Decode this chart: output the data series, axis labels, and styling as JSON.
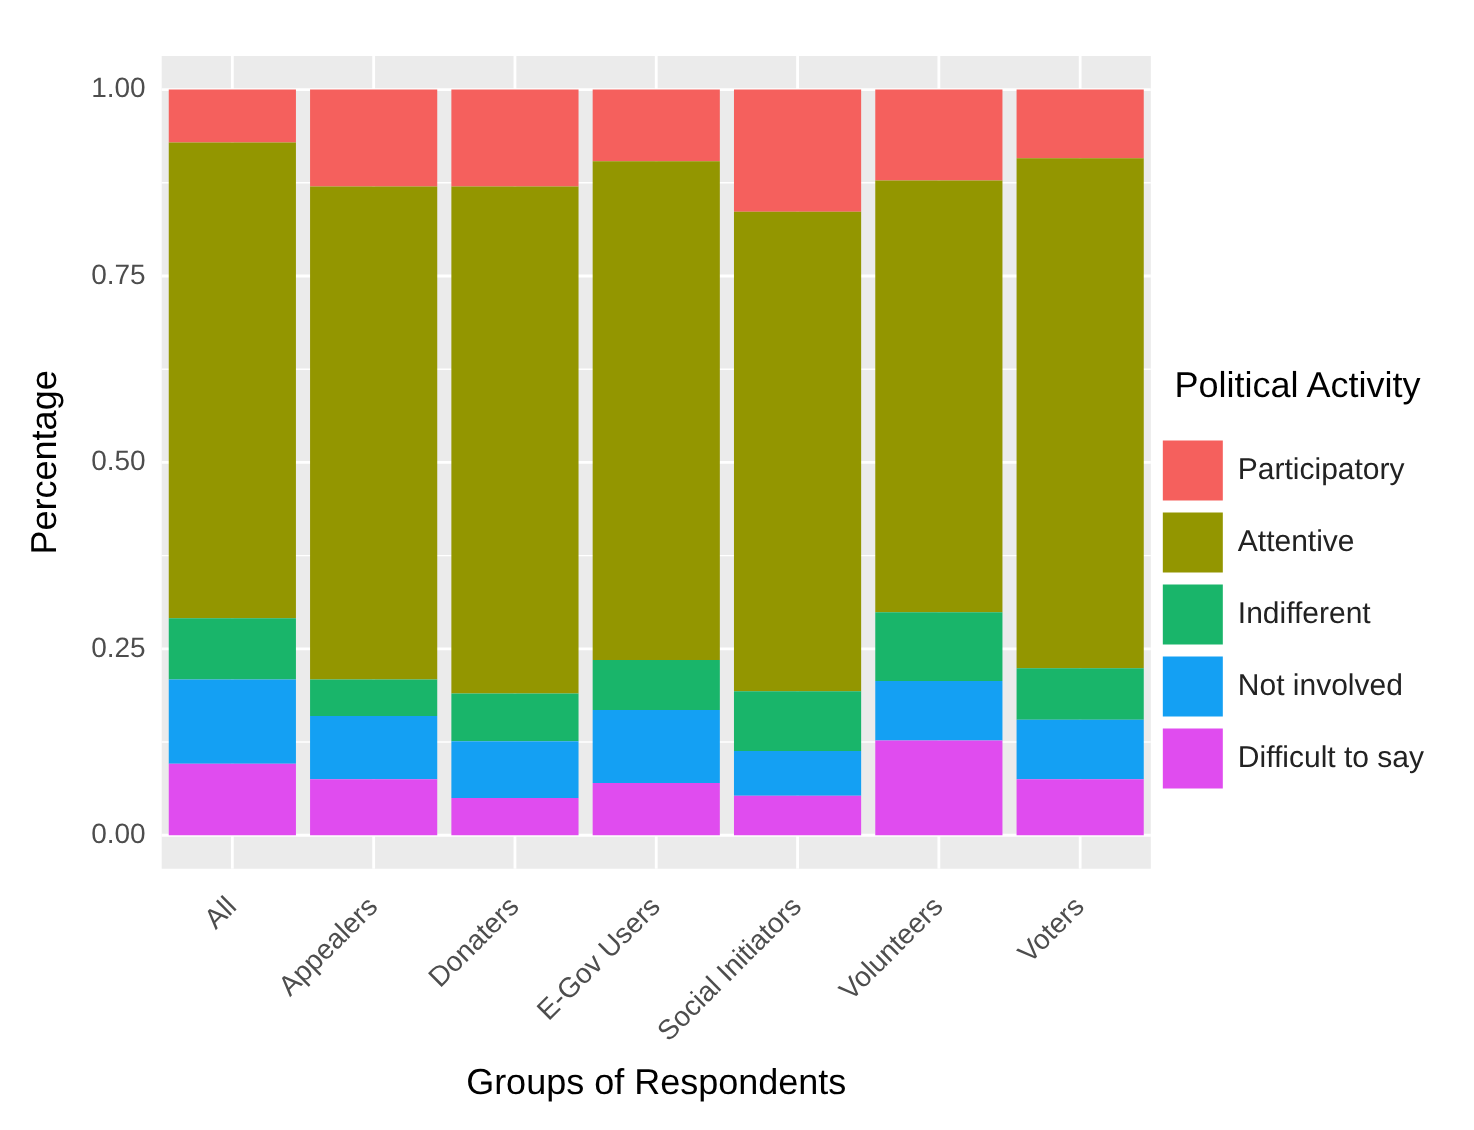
{
  "chart_data": {
    "type": "bar",
    "xlabel": "Groups of Respondents",
    "ylabel": "Percentage",
    "legend_title": "Political Activity",
    "categories": [
      "All",
      "Appealers",
      "Donaters",
      "E-Gov Users",
      "Social Initiators",
      "Volunteers",
      "Voters"
    ],
    "series": [
      {
        "name": "Difficult to say",
        "color": "#e04cef",
        "values": [
          0.096,
          0.075,
          0.05,
          0.07,
          0.053,
          0.127,
          0.075
        ]
      },
      {
        "name": "Not involved",
        "color": "#14a0f3",
        "values": [
          0.113,
          0.085,
          0.076,
          0.098,
          0.06,
          0.08,
          0.08
        ]
      },
      {
        "name": "Indifferent",
        "color": "#19b56a",
        "values": [
          0.082,
          0.049,
          0.064,
          0.067,
          0.08,
          0.092,
          0.069
        ]
      },
      {
        "name": "Attentive",
        "color": "#939600",
        "values": [
          0.638,
          0.661,
          0.68,
          0.669,
          0.643,
          0.579,
          0.684
        ]
      },
      {
        "name": "Participatory",
        "color": "#f5605d",
        "values": [
          0.071,
          0.13,
          0.13,
          0.096,
          0.164,
          0.122,
          0.092
        ]
      }
    ],
    "stacked": true,
    "ylim": [
      -0.045,
      1.045
    ],
    "yticks": [
      {
        "value": 0,
        "label": "0.00"
      },
      {
        "value": 0.25,
        "label": "0.25"
      },
      {
        "value": 0.5,
        "label": "0.50"
      },
      {
        "value": 0.75,
        "label": "0.75"
      },
      {
        "value": 1,
        "label": "1.00"
      }
    ],
    "grid": true,
    "legend": "right"
  }
}
